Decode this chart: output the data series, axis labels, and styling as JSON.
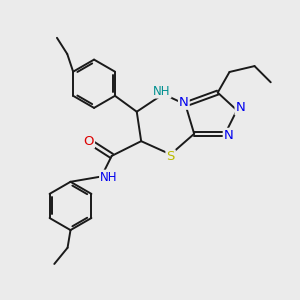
{
  "bg_color": "#ebebeb",
  "bond_color": "#1a1a1a",
  "bond_width": 1.4,
  "atom_colors": {
    "N": "#0000ee",
    "NH": "#009090",
    "S": "#bbbb00",
    "O": "#dd0000",
    "C": "#1a1a1a"
  },
  "font_size_N": 9.5,
  "font_size_NH": 8.5,
  "font_size_S": 9.5,
  "font_size_O": 9.5
}
